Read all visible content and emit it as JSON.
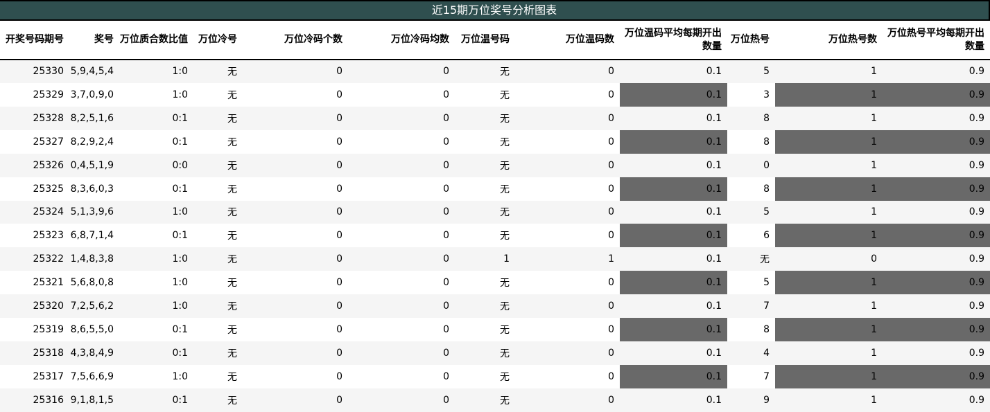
{
  "chart_data": {
    "type": "table",
    "title": "近15期万位奖号分析图表",
    "columns": [
      "开奖号码期号",
      "奖号",
      "万位质合数比值",
      "万位冷号",
      "万位冷码个数",
      "万位冷码均数",
      "万位温号码",
      "万位温码数",
      "万位温码平均每期开出数量",
      "万位热号",
      "万位热号数",
      "万位热号平均每期开出数量"
    ],
    "column_keys": [
      "period",
      "numbers",
      "prime-composite-ratio",
      "cold-number",
      "cold-count",
      "cold-average",
      "warm-number",
      "warm-count",
      "warm-avg-per-period",
      "hot-number",
      "hot-count",
      "hot-avg-per-period"
    ],
    "rows": [
      [
        "25330",
        "5,9,4,5,4",
        "1:0",
        "无",
        "0",
        "0",
        "无",
        "0",
        "0.1",
        "5",
        "1",
        "0.9"
      ],
      [
        "25329",
        "3,7,0,9,0",
        "1:0",
        "无",
        "0",
        "0",
        "无",
        "0",
        "0.1",
        "3",
        "1",
        "0.9"
      ],
      [
        "25328",
        "8,2,5,1,6",
        "0:1",
        "无",
        "0",
        "0",
        "无",
        "0",
        "0.1",
        "8",
        "1",
        "0.9"
      ],
      [
        "25327",
        "8,2,9,2,4",
        "0:1",
        "无",
        "0",
        "0",
        "无",
        "0",
        "0.1",
        "8",
        "1",
        "0.9"
      ],
      [
        "25326",
        "0,4,5,1,9",
        "0:0",
        "无",
        "0",
        "0",
        "无",
        "0",
        "0.1",
        "0",
        "1",
        "0.9"
      ],
      [
        "25325",
        "8,3,6,0,3",
        "0:1",
        "无",
        "0",
        "0",
        "无",
        "0",
        "0.1",
        "8",
        "1",
        "0.9"
      ],
      [
        "25324",
        "5,1,3,9,6",
        "1:0",
        "无",
        "0",
        "0",
        "无",
        "0",
        "0.1",
        "5",
        "1",
        "0.9"
      ],
      [
        "25323",
        "6,8,7,1,4",
        "0:1",
        "无",
        "0",
        "0",
        "无",
        "0",
        "0.1",
        "6",
        "1",
        "0.9"
      ],
      [
        "25322",
        "1,4,8,3,8",
        "1:0",
        "无",
        "0",
        "0",
        "1",
        "1",
        "0.1",
        "无",
        "0",
        "0.9"
      ],
      [
        "25321",
        "5,6,8,0,8",
        "1:0",
        "无",
        "0",
        "0",
        "无",
        "0",
        "0.1",
        "5",
        "1",
        "0.9"
      ],
      [
        "25320",
        "7,2,5,6,2",
        "1:0",
        "无",
        "0",
        "0",
        "无",
        "0",
        "0.1",
        "7",
        "1",
        "0.9"
      ],
      [
        "25319",
        "8,6,5,5,0",
        "0:1",
        "无",
        "0",
        "0",
        "无",
        "0",
        "0.1",
        "8",
        "1",
        "0.9"
      ],
      [
        "25318",
        "4,3,8,4,9",
        "0:1",
        "无",
        "0",
        "0",
        "无",
        "0",
        "0.1",
        "4",
        "1",
        "0.9"
      ],
      [
        "25317",
        "7,5,6,6,9",
        "1:0",
        "无",
        "0",
        "0",
        "无",
        "0",
        "0.1",
        "7",
        "1",
        "0.9"
      ],
      [
        "25316",
        "9,1,8,1,5",
        "0:1",
        "无",
        "0",
        "0",
        "无",
        "0",
        "0.1",
        "9",
        "1",
        "0.9"
      ]
    ],
    "always_dark_columns": [
      8,
      11
    ],
    "dark_if_nonzero_columns": [
      7,
      10
    ],
    "layout": {
      "legend_position": "none",
      "grid": false,
      "zebra_striping": true,
      "stripe_on_odd_periods": true
    },
    "colors": {
      "title_bg": "#2F4F4F",
      "title_text": "#FFFFFF",
      "border": "#000000",
      "stripe_bg": "#F5F5F5",
      "row_bg": "#FFFFFF",
      "highlight_bg": "#696969",
      "text": "#000000"
    }
  }
}
